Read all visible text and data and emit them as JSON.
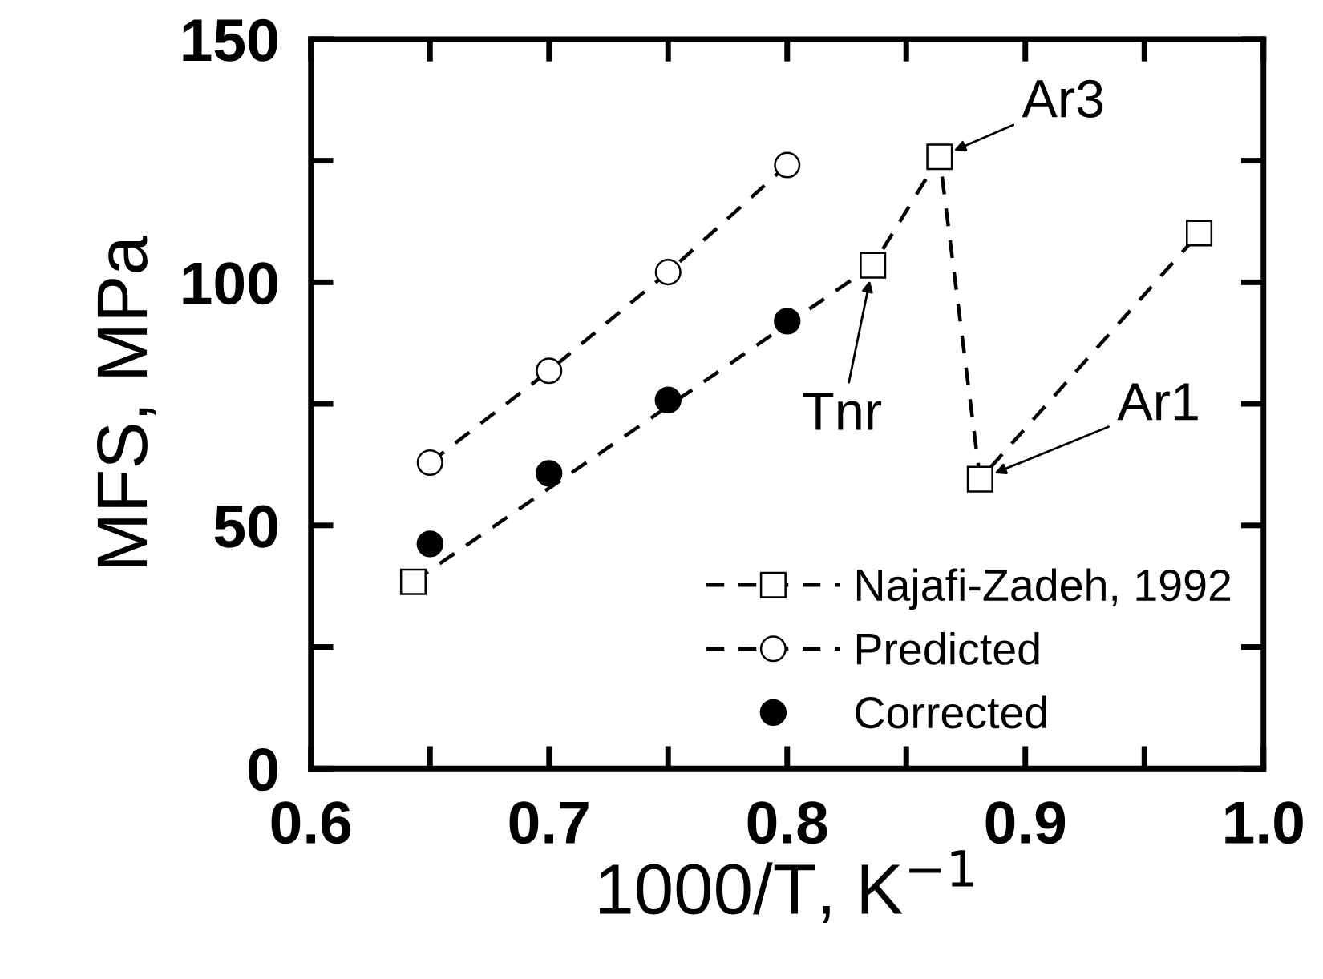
{
  "chart_data": {
    "type": "line",
    "xlabel": "1000/T, K$^{−1}$",
    "ylabel": "MFS, MPa",
    "xlim": [
      0.6,
      1.0
    ],
    "ylim": [
      0,
      150
    ],
    "xticks": [
      0.6,
      {
        "value": 0.65,
        "label": null
      },
      0.7,
      {
        "value": 0.75,
        "label": null
      },
      0.8,
      {
        "value": 0.85,
        "label": null
      },
      0.9,
      {
        "value": 0.95,
        "label": null
      },
      {
        "value": 1.0,
        "label": "1.0"
      }
    ],
    "yticks": [
      0,
      {
        "value": 25,
        "label": null
      },
      50,
      {
        "value": 75,
        "label": null
      },
      100,
      {
        "value": 125,
        "label": null
      },
      150
    ],
    "grid": false,
    "legend": "bottom right",
    "line_style": "dashed",
    "series": [
      {
        "name": "Najafi-Zadeh, 1992",
        "marker": "square",
        "color": "#000000",
        "x": [
          0.643,
          0.836,
          0.864,
          0.881,
          0.973
        ],
        "values": [
          38.4,
          103.5,
          125.8,
          59.5,
          110.1
        ]
      },
      {
        "name": "Predicted",
        "marker": "circle",
        "color": "#000000",
        "x": [
          0.65,
          0.7,
          0.75,
          0.8
        ],
        "values": [
          62.9,
          81.8,
          102.1,
          124.1
        ]
      },
      {
        "name": "Corrected",
        "type": "scatter",
        "marker": "circle",
        "color": "#000000",
        "x": [
          0.65,
          0.7,
          0.75,
          0.8
        ],
        "values": [
          46.2,
          60.7,
          75.8,
          92.0
        ]
      }
    ],
    "annotations": [
      {
        "text": "Ar3",
        "x": 0.864,
        "y": 125.8
      },
      {
        "text": "Tnr",
        "x": 0.836,
        "y": 103.5
      },
      {
        "text": "Ar1",
        "x": 0.881,
        "y": 59.5
      }
    ]
  }
}
